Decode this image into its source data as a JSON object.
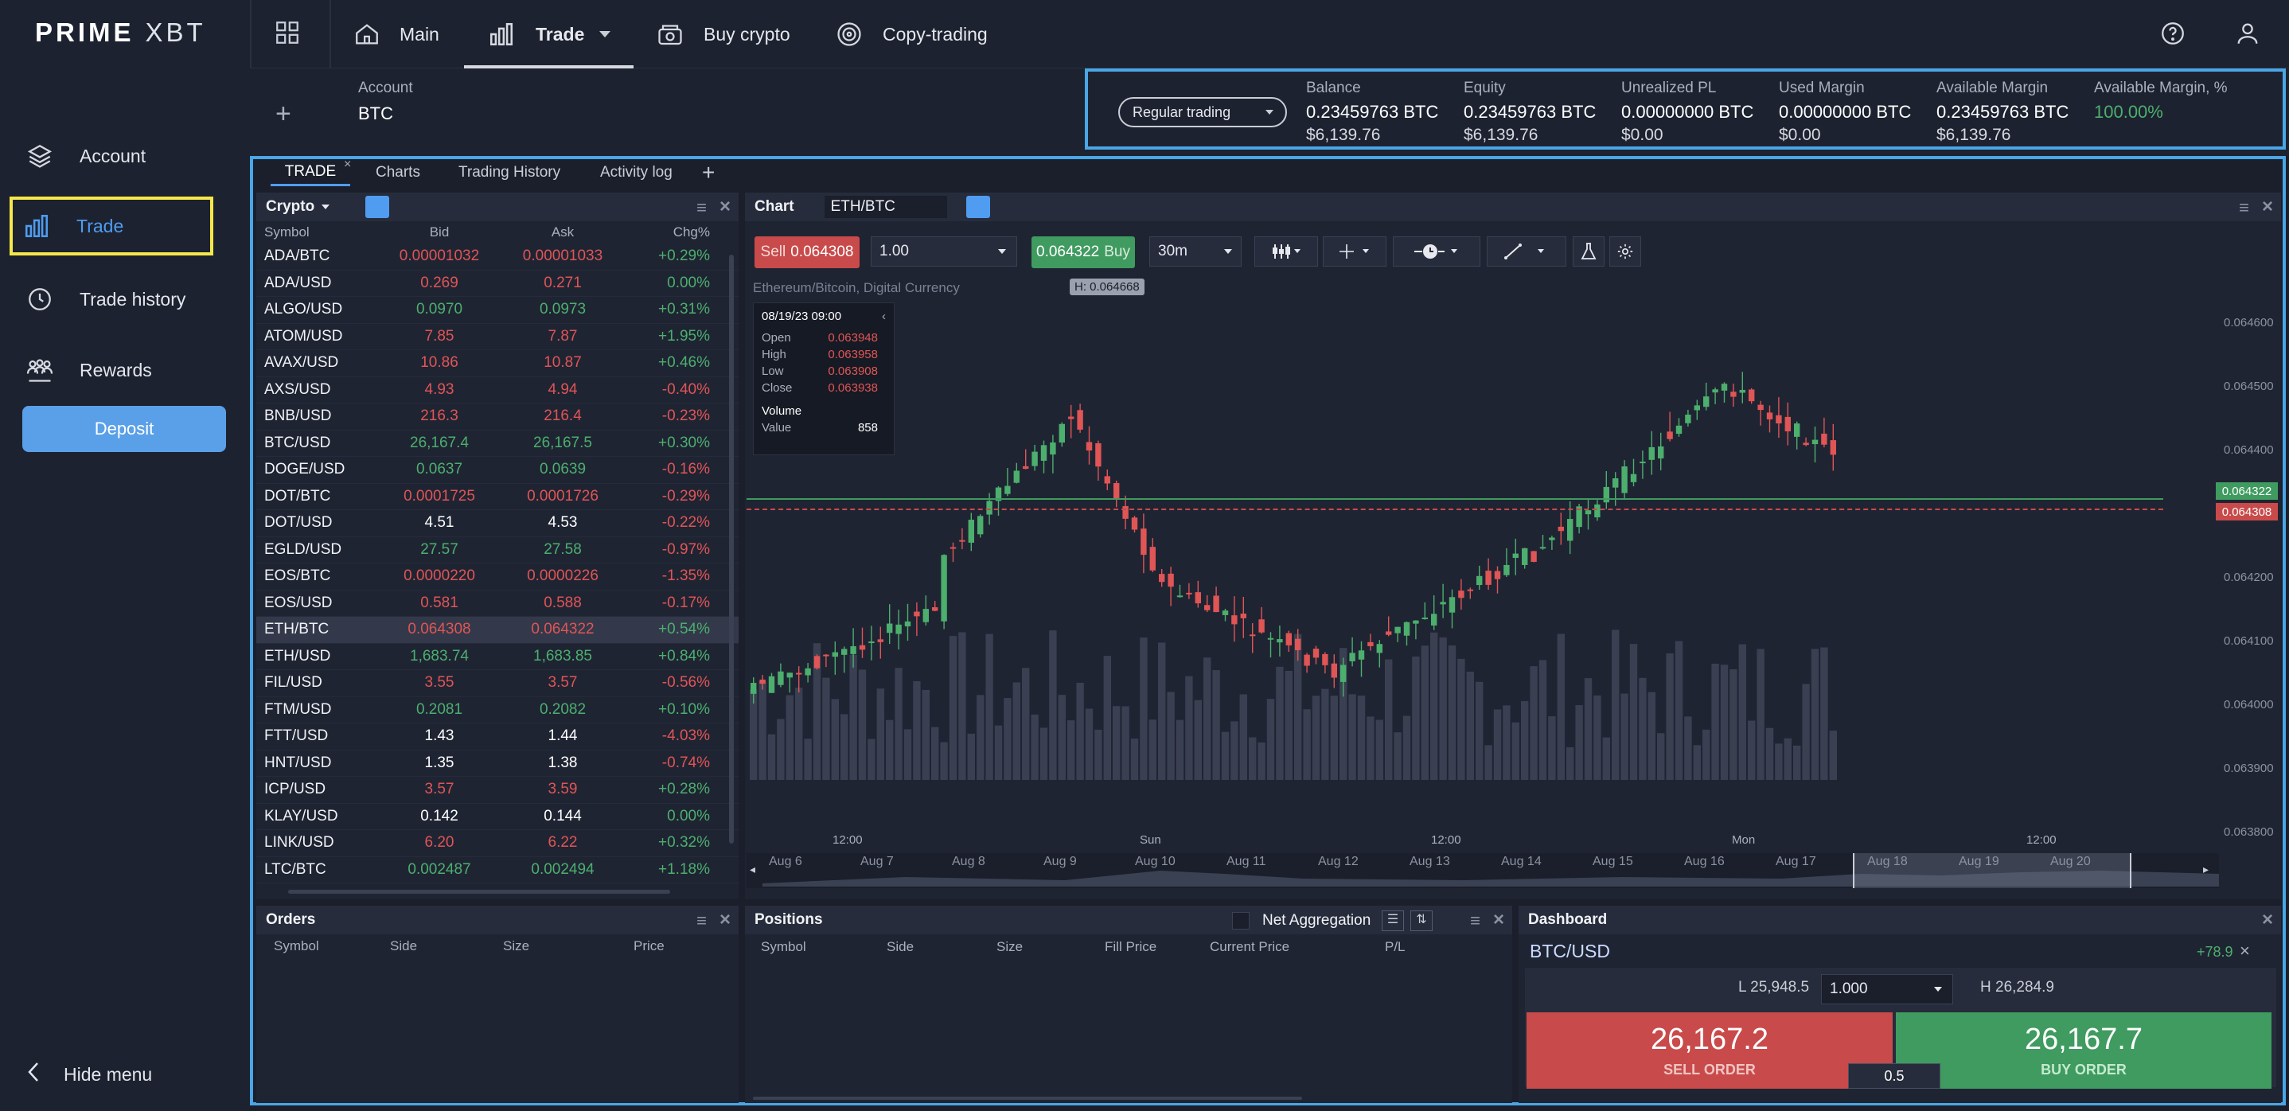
{
  "logo": {
    "brand_a": "PRIME",
    "brand_b": "XBT"
  },
  "nav": {
    "main": "Main",
    "trade": "Trade",
    "buy_crypto": "Buy crypto",
    "copy_trading": "Copy-trading"
  },
  "sidebar": {
    "items": [
      {
        "label": "Account",
        "icon": "layers-icon"
      },
      {
        "label": "Trade",
        "icon": "bar-chart-icon"
      },
      {
        "label": "Trade history",
        "icon": "clock-icon"
      },
      {
        "label": "Rewards",
        "icon": "people-icon"
      }
    ],
    "deposit": "Deposit",
    "hide_menu": "Hide menu"
  },
  "account": {
    "label": "Account",
    "currency": "BTC",
    "mode": "Regular trading",
    "stats": [
      {
        "label": "Balance",
        "value": "0.23459763 BTC",
        "sub": "$6,139.76"
      },
      {
        "label": "Equity",
        "value": "0.23459763 BTC",
        "sub": "$6,139.76"
      },
      {
        "label": "Unrealized PL",
        "value": "0.00000000 BTC",
        "sub": "$0.00"
      },
      {
        "label": "Used Margin",
        "value": "0.00000000 BTC",
        "sub": "$0.00"
      },
      {
        "label": "Available Margin",
        "value": "0.23459763 BTC",
        "sub": "$6,139.76"
      },
      {
        "label": "Available Margin, %",
        "value": "100.00%",
        "sub": ""
      }
    ]
  },
  "tabs": [
    "TRADE",
    "Charts",
    "Trading History",
    "Activity log"
  ],
  "crypto_panel": {
    "title": "Crypto",
    "headers": [
      "Symbol",
      "Bid",
      "Ask",
      "Chg%"
    ],
    "rows": [
      {
        "sym": "ADA/BTC",
        "bid": "0.00001032",
        "ask": "0.00001033",
        "chg": "+0.29%",
        "c": "dn"
      },
      {
        "sym": "ADA/USD",
        "bid": "0.269",
        "ask": "0.271",
        "chg": "0.00%",
        "c": "dn"
      },
      {
        "sym": "ALGO/USD",
        "bid": "0.0970",
        "ask": "0.0973",
        "chg": "+0.31%",
        "c": "up"
      },
      {
        "sym": "ATOM/USD",
        "bid": "7.85",
        "ask": "7.87",
        "chg": "+1.95%",
        "c": "dn"
      },
      {
        "sym": "AVAX/USD",
        "bid": "10.86",
        "ask": "10.87",
        "chg": "+0.46%",
        "c": "dn"
      },
      {
        "sym": "AXS/USD",
        "bid": "4.93",
        "ask": "4.94",
        "chg": "-0.40%",
        "c": "dn"
      },
      {
        "sym": "BNB/USD",
        "bid": "216.3",
        "ask": "216.4",
        "chg": "-0.23%",
        "c": "dn"
      },
      {
        "sym": "BTC/USD",
        "bid": "26,167.4",
        "ask": "26,167.5",
        "chg": "+0.30%",
        "c": "up"
      },
      {
        "sym": "DOGE/USD",
        "bid": "0.0637",
        "ask": "0.0639",
        "chg": "-0.16%",
        "c": "up"
      },
      {
        "sym": "DOT/BTC",
        "bid": "0.0001725",
        "ask": "0.0001726",
        "chg": "-0.29%",
        "c": "dn"
      },
      {
        "sym": "DOT/USD",
        "bid": "4.51",
        "ask": "4.53",
        "chg": "-0.22%",
        "c": "wh"
      },
      {
        "sym": "EGLD/USD",
        "bid": "27.57",
        "ask": "27.58",
        "chg": "-0.97%",
        "c": "up"
      },
      {
        "sym": "EOS/BTC",
        "bid": "0.0000220",
        "ask": "0.0000226",
        "chg": "-1.35%",
        "c": "dn"
      },
      {
        "sym": "EOS/USD",
        "bid": "0.581",
        "ask": "0.588",
        "chg": "-0.17%",
        "c": "dn"
      },
      {
        "sym": "ETH/BTC",
        "bid": "0.064308",
        "ask": "0.064322",
        "chg": "+0.54%",
        "c": "dn"
      },
      {
        "sym": "ETH/USD",
        "bid": "1,683.74",
        "ask": "1,683.85",
        "chg": "+0.84%",
        "c": "up"
      },
      {
        "sym": "FIL/USD",
        "bid": "3.55",
        "ask": "3.57",
        "chg": "-0.56%",
        "c": "dn"
      },
      {
        "sym": "FTM/USD",
        "bid": "0.2081",
        "ask": "0.2082",
        "chg": "+0.10%",
        "c": "up"
      },
      {
        "sym": "FTT/USD",
        "bid": "1.43",
        "ask": "1.44",
        "chg": "-4.03%",
        "c": "wh"
      },
      {
        "sym": "HNT/USD",
        "bid": "1.35",
        "ask": "1.38",
        "chg": "-0.74%",
        "c": "wh"
      },
      {
        "sym": "ICP/USD",
        "bid": "3.57",
        "ask": "3.59",
        "chg": "+0.28%",
        "c": "dn"
      },
      {
        "sym": "KLAY/USD",
        "bid": "0.142",
        "ask": "0.144",
        "chg": "0.00%",
        "c": "wh"
      },
      {
        "sym": "LINK/USD",
        "bid": "6.20",
        "ask": "6.22",
        "chg": "+0.32%",
        "c": "dn"
      },
      {
        "sym": "LTC/BTC",
        "bid": "0.002487",
        "ask": "0.002494",
        "chg": "+1.18%",
        "c": "up"
      }
    ]
  },
  "chart_panel": {
    "title": "Chart",
    "symbol": "ETH/BTC",
    "sell_label": "Sell",
    "sell_price": "0.064308",
    "buy_label": "Buy",
    "buy_price": "0.064322",
    "qty": "1.00",
    "interval": "30m",
    "subtitle": "Ethereum/Bitcoin, Digital Currency",
    "high_marker": "H: 0.064668",
    "ohlc": {
      "date": "08/19/23 09:00",
      "open_label": "Open",
      "open": "0.063948",
      "high_label": "High",
      "high": "0.063958",
      "low_label": "Low",
      "low": "0.063908",
      "close_label": "Close",
      "close": "0.063938",
      "volume_label": "Volume",
      "value_label": "Value",
      "value": "858"
    },
    "y_ticks": [
      "0.064600",
      "0.064500",
      "0.064400",
      "0.064300",
      "0.064200",
      "0.064100",
      "0.064000",
      "0.063900",
      "0.063800"
    ],
    "ask_tag": "0.064322",
    "bid_tag": "0.064308",
    "x_ticks": [
      "12:00",
      "Sun",
      "12:00",
      "Mon",
      "12:00"
    ],
    "nav_dates": [
      "Aug 6",
      "Aug 7",
      "Aug 8",
      "Aug 9",
      "Aug 10",
      "Aug 11",
      "Aug 12",
      "Aug 13",
      "Aug 14",
      "Aug 15",
      "Aug 16",
      "Aug 17",
      "Aug 18",
      "Aug 19",
      "Aug 20"
    ]
  },
  "orders_panel": {
    "title": "Orders",
    "headers": [
      "Symbol",
      "Side",
      "Size",
      "Price"
    ]
  },
  "positions_panel": {
    "title": "Positions",
    "net_aggregation": "Net Aggregation",
    "headers": [
      "Symbol",
      "Side",
      "Size",
      "Fill Price",
      "Current Price",
      "P/L"
    ]
  },
  "dashboard": {
    "title": "Dashboard",
    "symbol": "BTC/USD",
    "change": "+78.9",
    "low": "L 25,948.5",
    "high": "H 26,284.9",
    "qty": "1.000",
    "sell_price": "26,167.2",
    "sell_label": "SELL ORDER",
    "buy_price": "26,167.7",
    "buy_label": "BUY ORDER",
    "spread": "0.5"
  },
  "colors": {
    "accent": "#4f9cf0",
    "up": "#4caf6d",
    "down": "#e05555",
    "highlight": "#f6e84a",
    "frame": "#4aa6e6"
  }
}
